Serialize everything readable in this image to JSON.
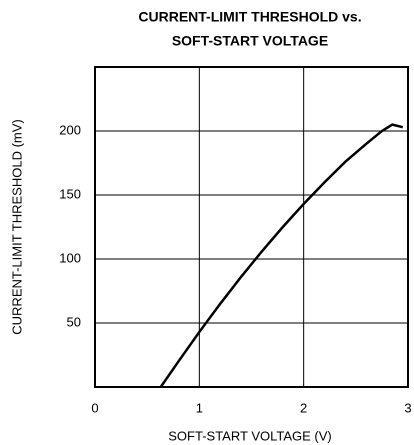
{
  "chart_data": {
    "type": "line",
    "title": [
      "CURRENT-LIMIT THRESHOLD vs.",
      "SOFT-START VOLTAGE"
    ],
    "x_label": "SOFT-START VOLTAGE (V)",
    "y_label": "CURRENT-LIMIT THRESHOLD (mV)",
    "x": [
      0.63,
      0.8,
      1.0,
      1.2,
      1.4,
      1.6,
      1.8,
      2.0,
      2.2,
      2.4,
      2.6,
      2.75,
      2.85,
      2.95
    ],
    "series": [
      {
        "color": "#000000",
        "values": [
          0,
          20,
          43,
          65,
          86,
          106,
          125,
          143,
          160,
          176,
          190,
          200,
          205,
          203
        ]
      }
    ],
    "xlim": [
      0,
      3
    ],
    "xticks": [
      0,
      1,
      2,
      3
    ],
    "ylim": [
      0,
      250
    ],
    "yticks": [
      50,
      100,
      150,
      200
    ],
    "grid": true
  }
}
